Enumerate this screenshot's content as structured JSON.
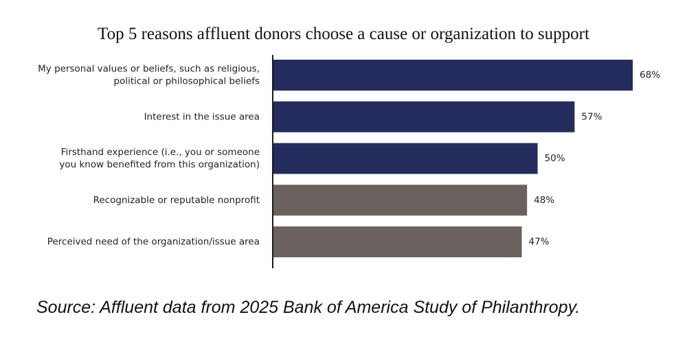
{
  "chart_data": {
    "type": "bar",
    "orientation": "horizontal",
    "title": "Top 5 reasons affluent donors choose a cause or organization to support",
    "xlabel": "",
    "ylabel": "",
    "categories": [
      [
        "My personal values or beliefs, such as religious,",
        "political or philosophical beliefs"
      ],
      [
        "Interest in the issue area"
      ],
      [
        "Firsthand experience (i.e., you or someone",
        "you know benefited from this organization)"
      ],
      [
        "Recognizable or reputable nonprofit"
      ],
      [
        "Perceived need of the organization/issue area"
      ]
    ],
    "values": [
      68,
      57,
      50,
      48,
      47
    ],
    "value_labels": [
      "68%",
      "57%",
      "50%",
      "48%",
      "47%"
    ],
    "unit": "%",
    "bar_colors": [
      "#242c5e",
      "#242c5e",
      "#242c5e",
      "#6b6260",
      "#6b6260"
    ],
    "xlim": [
      0,
      70
    ],
    "grid": false,
    "legend": "none"
  },
  "source_note": "Source: Affluent data from 2025 Bank of America Study of Philanthropy."
}
